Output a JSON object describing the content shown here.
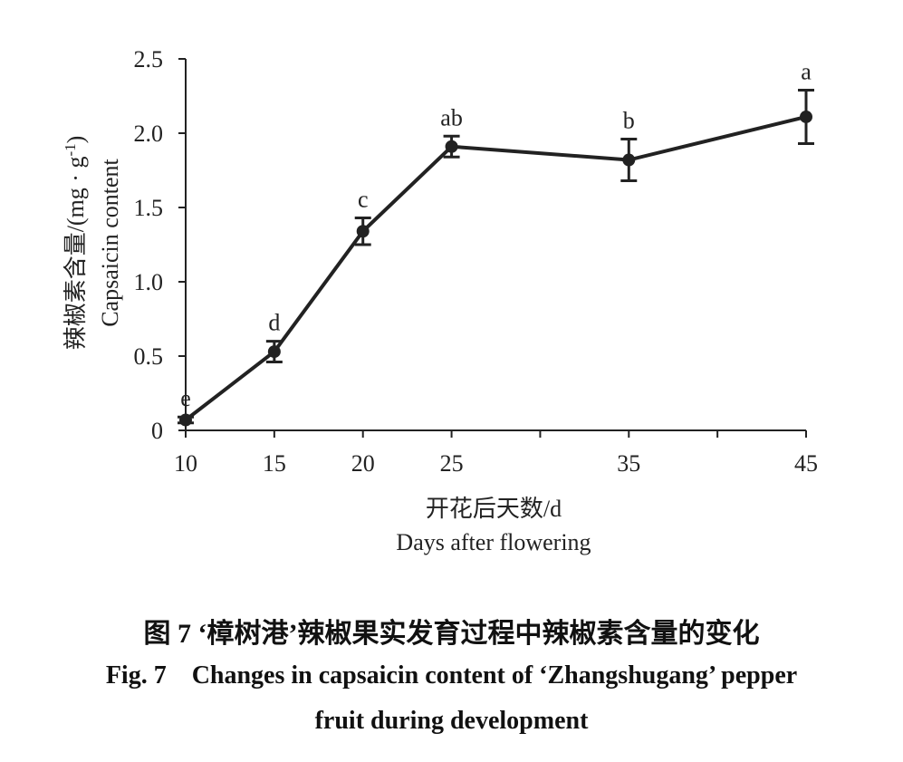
{
  "chart_data": {
    "type": "line",
    "x": [
      10,
      15,
      20,
      25,
      35,
      45
    ],
    "series": [
      {
        "values": [
          0.07,
          0.53,
          1.34,
          1.91,
          1.82,
          2.11
        ],
        "error": [
          0.02,
          0.07,
          0.09,
          0.07,
          0.14,
          0.18
        ],
        "significance": [
          "e",
          "d",
          "c",
          "ab",
          "b",
          "a"
        ]
      }
    ],
    "xticks": [
      "10",
      "15",
      "20",
      "25",
      "35",
      "45"
    ],
    "yticks": [
      "0",
      "0.5",
      "1.0",
      "1.5",
      "2.0",
      "2.5"
    ],
    "xlim": [
      10,
      45
    ],
    "ylim": [
      0,
      2.5
    ],
    "xlabel_cn": "开花后天数/d",
    "xlabel_en": "Days after flowering",
    "ylabel_cn": "辣椒素含量/(mg · g-1)",
    "ylabel_en": "Capsaicin content",
    "grid": false
  },
  "caption": {
    "cn": "图 7 ‘樟树港’辣椒果实发育过程中辣椒素含量的变化",
    "en_line1": "Fig. 7    Changes in capsaicin content of ‘Zhangshugang’ pepper",
    "en_line2": "fruit during development"
  },
  "colors": {
    "line": "#222222",
    "axis": "#222222"
  }
}
